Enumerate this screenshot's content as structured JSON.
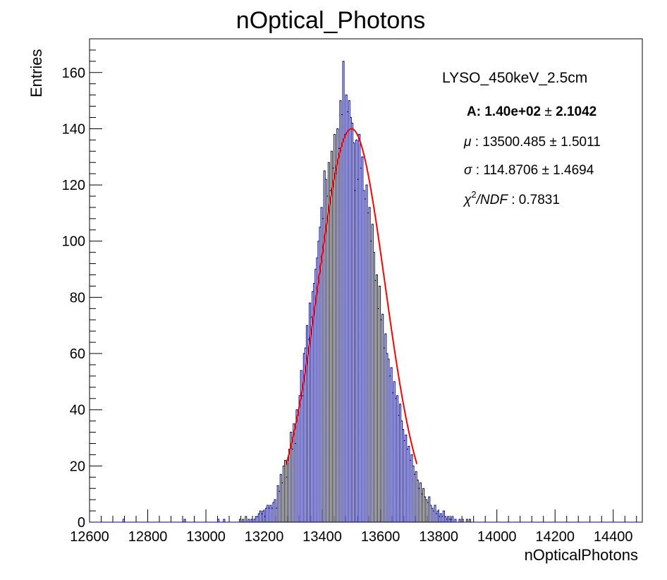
{
  "chart_data": {
    "type": "bar",
    "title": "nOptical_Photons",
    "xlabel": "nOpticalPhotons",
    "ylabel": "Entries",
    "xlim": [
      12600,
      14500
    ],
    "ylim": [
      0,
      172
    ],
    "x_ticks": [
      12600,
      12800,
      13000,
      13200,
      13400,
      13600,
      13800,
      14000,
      14200,
      14400
    ],
    "y_ticks": [
      0,
      20,
      40,
      60,
      80,
      100,
      120,
      140,
      160
    ],
    "grid": false,
    "histogram": {
      "name": "",
      "color": "#000080",
      "bin_width": 5,
      "bins": [
        [
          12715,
          1
        ],
        [
          12925,
          1
        ],
        [
          13040,
          1
        ],
        [
          13060,
          1
        ],
        [
          13115,
          1
        ],
        [
          13125,
          1
        ],
        [
          13135,
          2
        ],
        [
          13145,
          1
        ],
        [
          13155,
          1
        ],
        [
          13165,
          1
        ],
        [
          13170,
          2
        ],
        [
          13175,
          2
        ],
        [
          13180,
          3
        ],
        [
          13185,
          4
        ],
        [
          13190,
          3
        ],
        [
          13195,
          4
        ],
        [
          13200,
          2
        ],
        [
          13205,
          5
        ],
        [
          13210,
          6
        ],
        [
          13215,
          5
        ],
        [
          13220,
          6
        ],
        [
          13225,
          5
        ],
        [
          13230,
          7
        ],
        [
          13235,
          8
        ],
        [
          13240,
          5
        ],
        [
          13245,
          13
        ],
        [
          13250,
          11
        ],
        [
          13255,
          17
        ],
        [
          13260,
          14
        ],
        [
          13265,
          20
        ],
        [
          13270,
          22
        ],
        [
          13275,
          16
        ],
        [
          13280,
          22
        ],
        [
          13285,
          26
        ],
        [
          13290,
          32
        ],
        [
          13295,
          26
        ],
        [
          13300,
          35
        ],
        [
          13305,
          28
        ],
        [
          13310,
          40
        ],
        [
          13315,
          38
        ],
        [
          13320,
          45
        ],
        [
          13325,
          54
        ],
        [
          13330,
          45
        ],
        [
          13335,
          60
        ],
        [
          13340,
          62
        ],
        [
          13345,
          70
        ],
        [
          13350,
          65
        ],
        [
          13355,
          78
        ],
        [
          13360,
          73
        ],
        [
          13365,
          82
        ],
        [
          13370,
          85
        ],
        [
          13375,
          90
        ],
        [
          13380,
          94
        ],
        [
          13385,
          100
        ],
        [
          13390,
          105
        ],
        [
          13395,
          112
        ],
        [
          13400,
          108
        ],
        [
          13405,
          125
        ],
        [
          13410,
          122
        ],
        [
          13415,
          116
        ],
        [
          13420,
          128
        ],
        [
          13425,
          118
        ],
        [
          13430,
          132
        ],
        [
          13435,
          126
        ],
        [
          13440,
          138
        ],
        [
          13445,
          124
        ],
        [
          13450,
          140
        ],
        [
          13455,
          133
        ],
        [
          13460,
          150
        ],
        [
          13465,
          145
        ],
        [
          13470,
          164
        ],
        [
          13475,
          138
        ],
        [
          13480,
          152
        ],
        [
          13485,
          146
        ],
        [
          13490,
          150
        ],
        [
          13495,
          144
        ],
        [
          13500,
          142
        ],
        [
          13505,
          135
        ],
        [
          13510,
          118
        ],
        [
          13515,
          136
        ],
        [
          13520,
          122
        ],
        [
          13525,
          138
        ],
        [
          13530,
          126
        ],
        [
          13535,
          130
        ],
        [
          13540,
          118
        ],
        [
          13545,
          115
        ],
        [
          13550,
          120
        ],
        [
          13555,
          110
        ],
        [
          13560,
          112
        ],
        [
          13565,
          100
        ],
        [
          13570,
          106
        ],
        [
          13575,
          96
        ],
        [
          13580,
          86
        ],
        [
          13585,
          88
        ],
        [
          13590,
          76
        ],
        [
          13595,
          84
        ],
        [
          13600,
          72
        ],
        [
          13605,
          74
        ],
        [
          13610,
          62
        ],
        [
          13615,
          67
        ],
        [
          13620,
          60
        ],
        [
          13625,
          58
        ],
        [
          13630,
          52
        ],
        [
          13635,
          55
        ],
        [
          13640,
          46
        ],
        [
          13645,
          50
        ],
        [
          13650,
          44
        ],
        [
          13655,
          45
        ],
        [
          13660,
          38
        ],
        [
          13665,
          42
        ],
        [
          13670,
          36
        ],
        [
          13675,
          33
        ],
        [
          13680,
          29
        ],
        [
          13685,
          31
        ],
        [
          13690,
          26
        ],
        [
          13695,
          27
        ],
        [
          13700,
          22
        ],
        [
          13705,
          24
        ],
        [
          13710,
          20
        ],
        [
          13715,
          17
        ],
        [
          13720,
          18
        ],
        [
          13725,
          15
        ],
        [
          13730,
          12
        ],
        [
          13735,
          14
        ],
        [
          13740,
          10
        ],
        [
          13745,
          12
        ],
        [
          13750,
          9
        ],
        [
          13755,
          8
        ],
        [
          13760,
          7
        ],
        [
          13765,
          9
        ],
        [
          13770,
          6
        ],
        [
          13775,
          5
        ],
        [
          13780,
          4
        ],
        [
          13785,
          6
        ],
        [
          13790,
          3
        ],
        [
          13795,
          4
        ],
        [
          13800,
          2
        ],
        [
          13805,
          3
        ],
        [
          13810,
          2
        ],
        [
          13815,
          4
        ],
        [
          13820,
          2
        ],
        [
          13825,
          1
        ],
        [
          13830,
          2
        ],
        [
          13835,
          1
        ],
        [
          13840,
          1
        ],
        [
          13845,
          2
        ],
        [
          13855,
          1
        ],
        [
          13870,
          1
        ],
        [
          13880,
          1
        ],
        [
          13895,
          1
        ],
        [
          13905,
          1
        ]
      ]
    },
    "fit": {
      "name": "",
      "type": "gaussian",
      "color": "#ff0000",
      "amplitude": 140,
      "mean": 13500.485,
      "sigma": 114.8706,
      "range": [
        13275,
        13725
      ]
    },
    "stats_box": {
      "label": "LYSO_450keV_2.5cm",
      "A_label": "A:",
      "A_value": "1.40e+02",
      "A_error": "2.1042",
      "mu_symbol": "μ",
      "mu_value": "13500.485",
      "mu_error": "1.5011",
      "sigma_symbol": "σ",
      "sigma_value": "114.8706",
      "sigma_error": "1.4694",
      "chi_symbol": "χ",
      "chi_exponent": "2",
      "chi_ndf": "/NDF",
      "chi_value": "0.7831",
      "pm": "±",
      "colon": ":"
    }
  }
}
